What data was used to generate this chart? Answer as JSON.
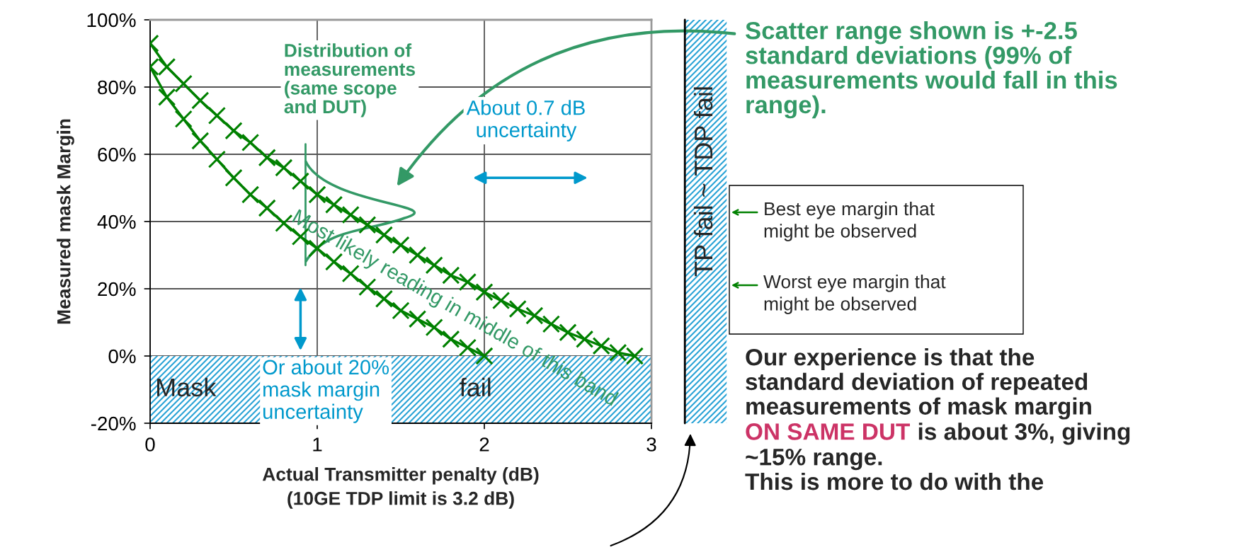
{
  "chart_data": {
    "type": "line",
    "xlabel": "Actual Transmitter penalty (dB)\n(10GE TDP limit is 3.2 dB)",
    "ylabel": "Measured mask Margin",
    "xlim": [
      0,
      3
    ],
    "xticks": [
      0,
      1,
      2,
      3
    ],
    "ylim": [
      -20,
      100
    ],
    "yticks": [
      {
        "value": -20,
        "label": "-20%"
      },
      {
        "value": 0,
        "label": "0%"
      },
      {
        "value": 20,
        "label": "20%"
      },
      {
        "value": 40,
        "label": "40%"
      },
      {
        "value": 60,
        "label": "60%"
      },
      {
        "value": 80,
        "label": "80%"
      },
      {
        "value": 100,
        "label": "100%"
      }
    ],
    "grid": true,
    "marker": "cross",
    "line_style": "solid",
    "series": [
      {
        "color": "#008000",
        "x": [
          0,
          0.1,
          0.2,
          0.3,
          0.4,
          0.5,
          0.6,
          0.7,
          0.8,
          0.9,
          1.0,
          1.1,
          1.2,
          1.3,
          1.4,
          1.5,
          1.6,
          1.7,
          1.8,
          1.9,
          2.0,
          2.1,
          2.2,
          2.3,
          2.4,
          2.5,
          2.6,
          2.7,
          2.8,
          2.9
        ],
        "values": [
          93,
          86,
          81,
          76,
          71.5,
          67,
          63.5,
          59,
          56,
          52,
          48,
          45,
          42,
          39,
          36,
          33,
          30,
          27,
          24,
          22,
          19,
          16.5,
          14,
          12,
          9.5,
          7,
          5,
          3,
          1,
          0
        ]
      },
      {
        "color": "#008000",
        "x": [
          0,
          0.1,
          0.2,
          0.3,
          0.4,
          0.5,
          0.6,
          0.7,
          0.8,
          0.9,
          1.0,
          1.1,
          1.2,
          1.3,
          1.4,
          1.5,
          1.6,
          1.7,
          1.8,
          1.9,
          2.0
        ],
        "values": [
          86,
          77,
          70.5,
          64,
          58.5,
          53,
          48,
          44,
          39.5,
          35.5,
          32,
          28,
          24.5,
          20.5,
          17,
          13.5,
          11,
          8.5,
          5,
          2.5,
          0
        ]
      }
    ],
    "bands": [
      {
        "axis": "y",
        "from": -20,
        "to": 0,
        "label": "Mask fail",
        "color": "#29a3d6"
      },
      {
        "axis": "x",
        "from": 3.2,
        "to": 3.45,
        "label": "TP fail ~ TDP fail",
        "color": "#29a3d6"
      }
    ],
    "ref_lines": [
      {
        "axis": "x",
        "value": 3.2
      }
    ],
    "annotations": [
      "Distribution of\nmeasurements\n(same scope\nand DUT)",
      "About 0.7 dB\nuncertainty",
      "Or about 20%\nmask margin\nuncertainty",
      "Most likely reading in middle of this band",
      "Scatter range shown is +-2.5\nstandard deviations (99% of\nmeasurements would fall in this\nrange).",
      "Best eye margin that\nmight be observed",
      "Worst eye margin that\nmight be observed",
      "Our experience is that the\nstandard deviation of repeated\nmeasurements of mask margin",
      "ON SAME DUT",
      "is about 3%, giving",
      "~15% range.\nThis is more to do with the"
    ]
  }
}
